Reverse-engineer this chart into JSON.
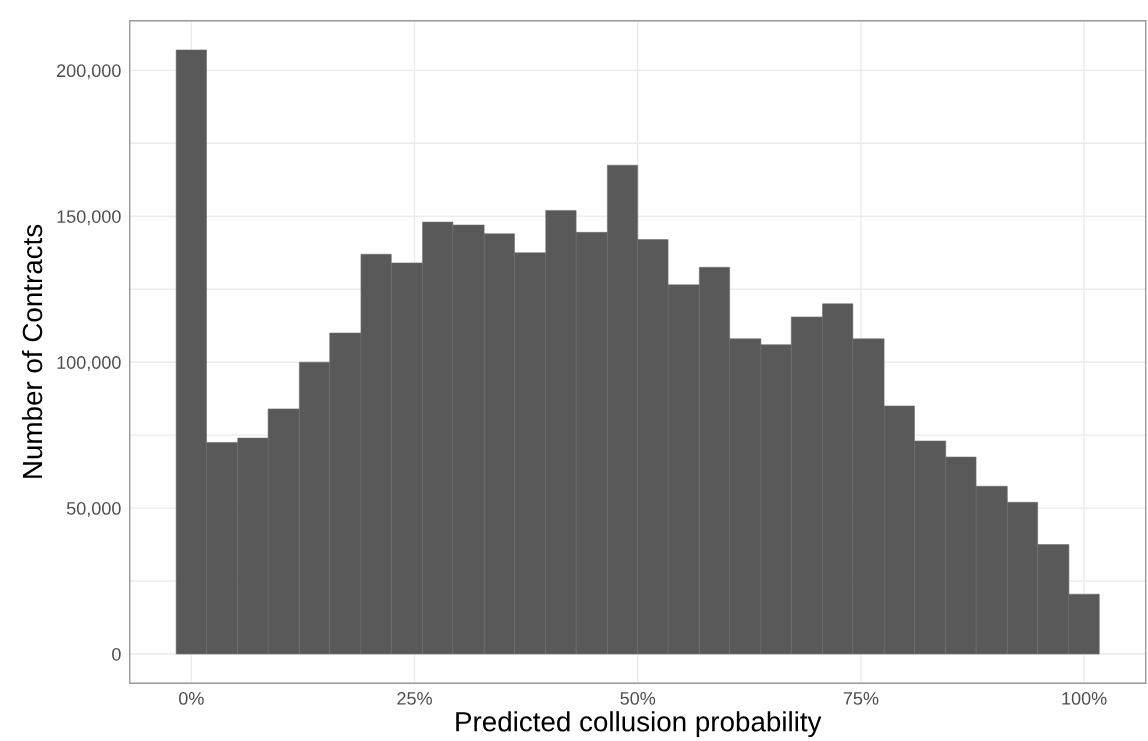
{
  "chart_data": {
    "type": "histogram",
    "xlabel": "Predicted collusion probability",
    "ylabel": "Number of Contracts",
    "color": "#595959",
    "bins": [
      -1.7,
      1.7,
      5.2,
      8.6,
      12.1,
      15.5,
      19.0,
      22.4,
      25.9,
      29.3,
      32.8,
      36.2,
      39.7,
      43.1,
      46.6,
      50.0,
      53.4,
      56.9,
      60.3,
      63.8,
      67.2,
      70.7,
      74.1,
      77.6,
      81.0,
      84.5,
      87.9,
      91.4,
      94.8,
      98.3,
      101.7
    ],
    "values": [
      207000,
      72500,
      74000,
      84000,
      100000,
      110000,
      137000,
      134000,
      148000,
      147000,
      144000,
      137500,
      152000,
      144500,
      167500,
      142000,
      126500,
      132500,
      108000,
      106000,
      115500,
      120000,
      108000,
      85000,
      73000,
      67500,
      57500,
      52000,
      37500,
      20500
    ],
    "xlim": [
      -6.9,
      106.9
    ],
    "ylim": [
      -10000,
      217000
    ],
    "xticks": [
      {
        "value": 0,
        "label": "0%"
      },
      {
        "value": 25,
        "label": "25%"
      },
      {
        "value": 50,
        "label": "50%"
      },
      {
        "value": 75,
        "label": "75%"
      },
      {
        "value": 100,
        "label": "100%"
      }
    ],
    "yticks": [
      {
        "value": 0,
        "label": "0"
      },
      {
        "value": 25000,
        "label": null
      },
      {
        "value": 50000,
        "label": "50,000"
      },
      {
        "value": 75000,
        "label": null
      },
      {
        "value": 100000,
        "label": "100,000"
      },
      {
        "value": 125000,
        "label": null
      },
      {
        "value": 150000,
        "label": "150,000"
      },
      {
        "value": 175000,
        "label": null
      },
      {
        "value": 200000,
        "label": "200,000"
      }
    ],
    "grid": true
  }
}
